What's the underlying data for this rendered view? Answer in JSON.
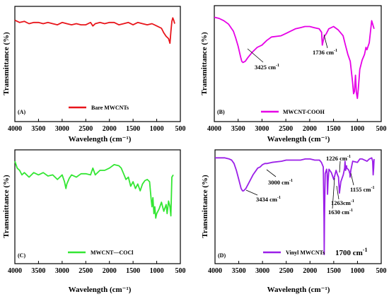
{
  "chart_data": [
    {
      "type": "line",
      "panel_label": "(A)",
      "xlabel": "Wavelength (cm⁻¹)",
      "ylabel": "Transmittance (%)",
      "xlim": [
        4000,
        500
      ],
      "xticks": [
        4000,
        3500,
        3000,
        2500,
        2000,
        1500,
        1000,
        500
      ],
      "xtick_labels": [
        "4000",
        "3500",
        "3000",
        "2500",
        "2000",
        "1500",
        "1000",
        "500"
      ],
      "ylim": [
        0,
        100
      ],
      "grid": false,
      "legend": {
        "position": "bottom-center"
      },
      "series": [
        {
          "name": "Bare MWCNTs",
          "color": "#e8151b",
          "x": [
            4000,
            3900,
            3800,
            3700,
            3600,
            3500,
            3400,
            3300,
            3200,
            3100,
            3000,
            2900,
            2800,
            2700,
            2600,
            2500,
            2400,
            2350,
            2300,
            2200,
            2100,
            2000,
            1900,
            1800,
            1700,
            1600,
            1500,
            1400,
            1300,
            1200,
            1100,
            1000,
            900,
            850,
            800,
            750,
            720,
            700,
            680,
            660,
            640,
            620
          ],
          "y": [
            88,
            86,
            87,
            85,
            86,
            86,
            85,
            86,
            85,
            84,
            86,
            85,
            84,
            85,
            84,
            84,
            86,
            83,
            85,
            86,
            85,
            86,
            86,
            84,
            85,
            86,
            84,
            86,
            85,
            84,
            85,
            83,
            81,
            77,
            74,
            72,
            68,
            78,
            87,
            90,
            88,
            85
          ]
        }
      ]
    },
    {
      "type": "line",
      "panel_label": "(B)",
      "xlabel": "Wavelength (cm⁻¹)",
      "ylabel": "Transmittance (%)",
      "xlim": [
        4000,
        500
      ],
      "xticks": [
        4000,
        3500,
        3000,
        2500,
        2000,
        1500,
        1000,
        500
      ],
      "xtick_labels": [
        "4000",
        "3500",
        "3000",
        "2500",
        "2000",
        "1500",
        "1000",
        "500"
      ],
      "ylim": [
        0,
        100
      ],
      "grid": false,
      "legend": {
        "position": "bottom-center"
      },
      "annotations": [
        {
          "text": "3425 cm",
          "sup": "-1",
          "x": 3425
        },
        {
          "text": "1736 cm",
          "sup": "-1",
          "x": 1736
        }
      ],
      "series": [
        {
          "name": "MWCNT-COOH",
          "color": "#e600e6",
          "x": [
            4000,
            3900,
            3800,
            3700,
            3600,
            3550,
            3500,
            3450,
            3425,
            3400,
            3350,
            3300,
            3200,
            3100,
            3000,
            2900,
            2800,
            2600,
            2500,
            2400,
            2350,
            2300,
            2200,
            2100,
            2000,
            1900,
            1800,
            1750,
            1736,
            1700,
            1650,
            1600,
            1500,
            1400,
            1300,
            1250,
            1200,
            1150,
            1100,
            1080,
            1060,
            1040,
            1020,
            1000,
            980,
            950,
            900,
            850,
            820,
            800,
            750,
            700,
            650
          ],
          "y": [
            90,
            89,
            87,
            84,
            78,
            72,
            65,
            56,
            52,
            51,
            52,
            55,
            60,
            64,
            66,
            70,
            73,
            74,
            76,
            78,
            79,
            80,
            81,
            82,
            82,
            81,
            80,
            77,
            66,
            73,
            76,
            80,
            82,
            79,
            74,
            66,
            58,
            52,
            34,
            24,
            26,
            40,
            25,
            20,
            28,
            45,
            53,
            58,
            64,
            62,
            68,
            87,
            80
          ]
        }
      ]
    },
    {
      "type": "line",
      "panel_label": "(C)",
      "xlabel": "Wavelength (cm⁻¹)",
      "ylabel": "Transmittance (%)",
      "xlim": [
        4000,
        500
      ],
      "xticks": [
        4000,
        3500,
        3000,
        2500,
        2000,
        1500,
        1000,
        500
      ],
      "xtick_labels": [
        "4000",
        "3500",
        "3000",
        "2500",
        "2000",
        "1500",
        "1000",
        "500"
      ],
      "ylim": [
        0,
        100
      ],
      "grid": false,
      "legend": {
        "position": "bottom-center"
      },
      "series": [
        {
          "name": "MWCNT—COCl",
          "color": "#33e633",
          "x": [
            4000,
            3950,
            3900,
            3850,
            3800,
            3700,
            3600,
            3500,
            3400,
            3300,
            3200,
            3100,
            3000,
            2950,
            2920,
            2900,
            2850,
            2800,
            2700,
            2600,
            2500,
            2400,
            2350,
            2300,
            2200,
            2100,
            2000,
            1900,
            1800,
            1750,
            1700,
            1650,
            1600,
            1550,
            1500,
            1450,
            1400,
            1350,
            1300,
            1250,
            1200,
            1150,
            1120,
            1100,
            1080,
            1060,
            1040,
            1020,
            1000,
            950,
            900,
            850,
            800,
            780,
            750,
            720,
            700,
            680,
            650
          ],
          "y": [
            90,
            84,
            82,
            78,
            80,
            76,
            80,
            78,
            80,
            77,
            78,
            74,
            78,
            72,
            66,
            70,
            75,
            78,
            76,
            79,
            79,
            78,
            84,
            78,
            82,
            82,
            84,
            87,
            86,
            84,
            79,
            74,
            76,
            68,
            72,
            66,
            70,
            64,
            70,
            73,
            74,
            72,
            58,
            50,
            58,
            44,
            50,
            40,
            44,
            48,
            54,
            46,
            52,
            44,
            55,
            50,
            42,
            76,
            78
          ]
        }
      ]
    },
    {
      "type": "line",
      "panel_label": "(D)",
      "xlabel": "Wavelength (cm⁻¹)",
      "ylabel": "Transmittance (%)",
      "xlim": [
        4000,
        500
      ],
      "xticks": [
        4000,
        3500,
        3000,
        2500,
        2000,
        1500,
        1000,
        500
      ],
      "xtick_labels": [
        "4000",
        "3500",
        "3000",
        "2500",
        "2000",
        "1500",
        "1000",
        "500"
      ],
      "ylim": [
        0,
        100
      ],
      "grid": false,
      "legend": {
        "position": "bottom-right"
      },
      "annotations": [
        {
          "text": "3434 cm",
          "sup": "-1",
          "x": 3434
        },
        {
          "text": "3000 cm",
          "sup": "-1",
          "x": 3000
        },
        {
          "text": "1226 cm",
          "sup": "-1",
          "x": 1226
        },
        {
          "text": "1263cm",
          "sup": "-1",
          "x": 1263
        },
        {
          "text": "1155 cm",
          "sup": "-1",
          "x": 1155
        },
        {
          "text": "1630 cm",
          "sup": "-1",
          "x": 1630
        },
        {
          "text": "1700 cm",
          "sup": "-1",
          "x": 1700
        }
      ],
      "series": [
        {
          "name": "Vinyl MWCNTs",
          "color": "#9b1fe8",
          "x": [
            4000,
            3900,
            3800,
            3700,
            3650,
            3600,
            3550,
            3500,
            3450,
            3420,
            3400,
            3350,
            3300,
            3200,
            3100,
            3050,
            3000,
            2950,
            2900,
            2800,
            2600,
            2500,
            2400,
            2300,
            2200,
            2100,
            2000,
            1900,
            1800,
            1760,
            1720,
            1705,
            1700,
            1695,
            1680,
            1650,
            1640,
            1630,
            1620,
            1600,
            1550,
            1500,
            1450,
            1420,
            1400,
            1380,
            1350,
            1300,
            1270,
            1263,
            1250,
            1230,
            1226,
            1200,
            1180,
            1160,
            1155,
            1140,
            1100,
            1000,
            950,
            900,
            800,
            750,
            700,
            680,
            670,
            660,
            650
          ],
          "y": [
            93,
            93,
            93,
            92,
            91,
            88,
            82,
            74,
            66,
            64,
            64,
            66,
            70,
            78,
            84,
            85,
            87,
            88,
            88,
            89,
            90,
            91,
            91,
            91,
            91,
            92,
            92,
            91,
            91,
            89,
            85,
            40,
            8,
            40,
            79,
            83,
            79,
            61,
            72,
            83,
            80,
            74,
            82,
            78,
            76,
            62,
            72,
            78,
            84,
            90,
            82,
            86,
            84,
            83,
            82,
            79,
            76,
            82,
            90,
            89,
            92,
            92,
            90,
            92,
            93,
            90,
            78,
            84,
            92
          ]
        }
      ]
    }
  ]
}
